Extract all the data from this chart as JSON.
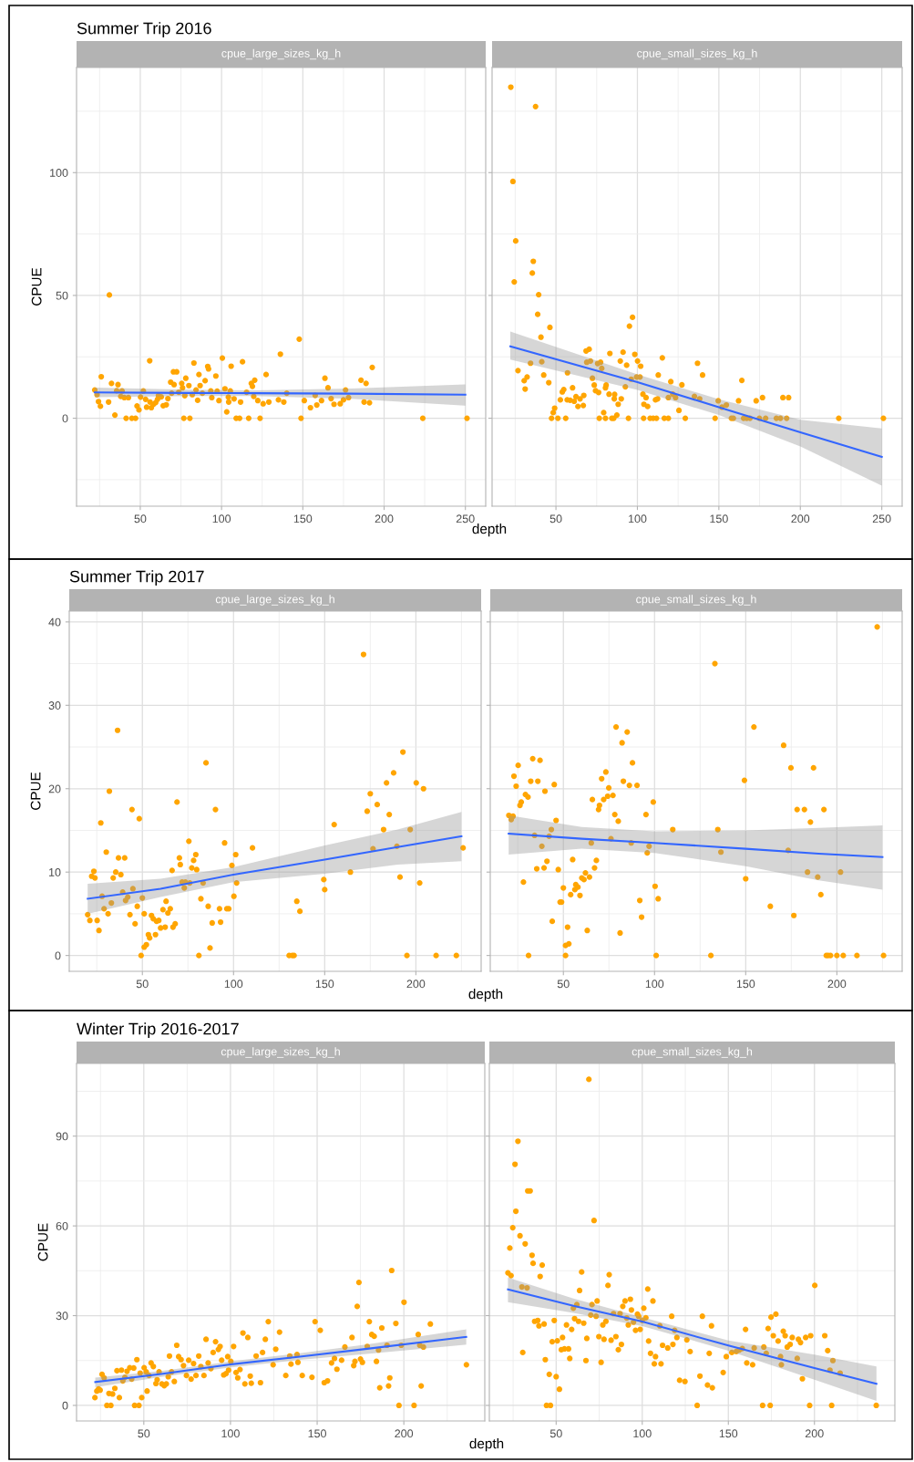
{
  "chart_data": [
    {
      "type": "scatter",
      "title": "Summer Trip 2016",
      "subtitle": "cpue_large_sizes_kg_h",
      "xlabel": "depth",
      "ylabel": "CPUE",
      "grid": true,
      "line_style": "solid",
      "xlim": [
        10.8,
        262.5
      ],
      "ylim": [
        -35.8,
        142.8
      ],
      "xticks": [
        {
          "value": 25,
          "label": null
        },
        50,
        {
          "value": 75,
          "label": null
        },
        100,
        {
          "value": 125,
          "label": null
        },
        150,
        {
          "value": 175,
          "label": null
        },
        200,
        {
          "value": 225,
          "label": null
        },
        250
      ],
      "yticks": [
        {
          "value": -25,
          "label": null
        },
        0,
        {
          "value": 25,
          "label": null
        },
        50,
        {
          "value": 75,
          "label": null
        },
        100,
        {
          "value": 125,
          "label": null
        }
      ],
      "series": [
        {
          "marker": "circle",
          "color": "#ffa500",
          "x": [
            22,
            23.4,
            24.3,
            25.5,
            26,
            30.5,
            31,
            32.3,
            34.4,
            36.3,
            35.5,
            38.8,
            38,
            40.2,
            41.3,
            42.7,
            44.8,
            47.1,
            48,
            49.2,
            50.2,
            51.9,
            53.3,
            53.9,
            55.8,
            56,
            56.8,
            58.1,
            59.5,
            60.6,
            61.2,
            62.9,
            64.1,
            66,
            67,
            68.7,
            69.3,
            70.8,
            70.4,
            72.4,
            73.7,
            75.5,
            76,
            76.8,
            77.4,
            78,
            79.9,
            80.5,
            82,
            83,
            84.3,
            85.3,
            86.1,
            86.8,
            88.2,
            89.9,
            91.5,
            92,
            93.4,
            94,
            96.5,
            97.3,
            98.4,
            100.5,
            102.1,
            103.2,
            104.2,
            104.4,
            105.4,
            105.9,
            107.7,
            109,
            111.1,
            111.7,
            112.9,
            115.4,
            116.7,
            118.3,
            119,
            120.4,
            119.8,
            122.3,
            123.7,
            125.6,
            127.4,
            129.1,
            135,
            136.2,
            138.3,
            140.1,
            147.8,
            148.9,
            150.9,
            154.7,
            157.6,
            158.6,
            161.5,
            163.6,
            165.5,
            167.4,
            169.2,
            173,
            175,
            176.3,
            178.1,
            185.8,
            187.7,
            188.9,
            191,
            192.7,
            223.8,
            251
          ],
          "values": [
            11.5,
            9.6,
            6.8,
            4.9,
            16.9,
            6.6,
            50.2,
            14.2,
            1.3,
            13.7,
            11.2,
            11.1,
            8.9,
            8.4,
            0,
            8.4,
            0,
            0,
            5,
            3.4,
            8.6,
            11.1,
            7.7,
            4.5,
            23.4,
            6.6,
            4.3,
            5.7,
            6.4,
            7.7,
            9.2,
            8.7,
            5.1,
            5.5,
            8,
            14.7,
            10.2,
            13.7,
            18.9,
            18.9,
            10.6,
            14.2,
            12.4,
            0,
            9.2,
            16.3,
            13.3,
            0,
            9.6,
            22.5,
            11.5,
            7.3,
            17.8,
            13.3,
            10.2,
            15.3,
            21.1,
            20.1,
            11.1,
            8.4,
            17.2,
            11,
            7.2,
            24.5,
            12,
            2.6,
            8.6,
            6.6,
            11.1,
            21.2,
            7.9,
            0,
            0,
            6.6,
            23,
            10.6,
            0,
            14.2,
            13,
            15.5,
            8.9,
            7.2,
            0,
            5.9,
            17.8,
            6.6,
            7.5,
            26.1,
            6.6,
            10.2,
            32.2,
            0,
            7.2,
            4.3,
            9.3,
            5.4,
            7.2,
            16.3,
            12.4,
            8,
            5.7,
            5.9,
            7.5,
            11.5,
            8.4,
            15.5,
            6.6,
            14.2,
            6.3,
            20.7,
            0,
            0
          ]
        },
        {
          "type": "line",
          "color": "#3366ff",
          "x": [
            22,
            80,
            120,
            180,
            250
          ],
          "values": [
            10.5,
            10.3,
            10.2,
            10.0,
            9.6
          ],
          "lower": [
            8.6,
            9.0,
            9.0,
            7.9,
            5.1
          ],
          "upper": [
            12.5,
            11.6,
            11.4,
            12.1,
            13.8
          ]
        }
      ]
    },
    {
      "type": "scatter",
      "subtitle": "cpue_small_sizes_kg_h",
      "grid": true,
      "line_style": "solid",
      "tick_labels": "x",
      "xlim": [
        10.8,
        262.5
      ],
      "ylim": [
        -35.8,
        142.8
      ],
      "xticks": [
        {
          "value": 25,
          "label": null
        },
        50,
        {
          "value": 75,
          "label": null
        },
        100,
        {
          "value": 125,
          "label": null
        },
        150,
        {
          "value": 175,
          "label": null
        },
        200,
        {
          "value": 225,
          "label": null
        },
        250
      ],
      "yticks": [
        {
          "value": -25,
          "label": null
        },
        0,
        {
          "value": 25,
          "label": null
        },
        50,
        {
          "value": 75,
          "label": null
        },
        100,
        {
          "value": 125,
          "label": null
        }
      ],
      "series": [
        {
          "marker": "circle",
          "color": "#ffa500",
          "x": [
            22.3,
            37.5,
            23.6,
            25.3,
            36.1,
            35.5,
            24.4,
            39.4,
            38.8,
            46.3,
            97,
            95.1,
            40.8,
            26.7,
            34.4,
            41.3,
            30.5,
            32.3,
            31.1,
            42.5,
            45.6,
            47.3,
            48.3,
            49.2,
            51.2,
            52.7,
            53.9,
            54.8,
            56,
            57.1,
            56.9,
            58.7,
            60.2,
            61.2,
            62.3,
            63.5,
            64.8,
            66.8,
            67.1,
            68.5,
            70.4,
            68.9,
            71.2,
            72.4,
            73.5,
            74.3,
            76.2,
            76.6,
            75.6,
            77.4,
            78.1,
            79.3,
            80.4,
            80.8,
            80.4,
            82.6,
            83.1,
            84.3,
            85.5,
            86,
            85.8,
            87.4,
            88.2,
            89.5,
            90.1,
            91.2,
            92.6,
            93.4,
            94.5,
            96.2,
            98.4,
            100.1,
            99.5,
            101.6,
            102,
            103.4,
            103.8,
            104,
            105.3,
            106.3,
            107.8,
            109.7,
            111.7,
            111.1,
            112.8,
            112.4,
            115.3,
            116.5,
            119,
            119,
            120.5,
            121.7,
            123.4,
            125.5,
            127.3,
            129.4,
            135,
            136.9,
            138.2,
            140,
            147.7,
            149.6,
            151.9,
            154.6,
            157.7,
            158.9,
            162.1,
            164.1,
            165.2,
            167.1,
            169.1,
            172.9,
            174.9,
            176.8,
            178.7,
            185.3,
            187.8,
            189.3,
            191.6,
            192.8,
            223.6,
            251
          ],
          "values": [
            134.8,
            126.9,
            96.4,
            72.2,
            63.9,
            59.1,
            55.5,
            50.3,
            42.3,
            37,
            41.1,
            37.5,
            33,
            19.4,
            22.4,
            23,
            15.3,
            16.8,
            11.9,
            17.6,
            14.5,
            0,
            2.3,
            4.1,
            0,
            7.5,
            10.7,
            11.7,
            0,
            18.5,
            7.5,
            7.3,
            12.4,
            6.9,
            8.8,
            4.8,
            7.9,
            5.2,
            9.3,
            27.4,
            28.1,
            22.8,
            23.3,
            16.3,
            13.5,
            11.2,
            10.5,
            0,
            22.3,
            22.8,
            20.3,
            2.3,
            0,
            13.5,
            12.4,
            9.8,
            26.4,
            0,
            0,
            9.7,
            7.9,
            1.3,
            5.7,
            23.3,
            7.9,
            26.9,
            12.8,
            21.6,
            0,
            15.9,
            26,
            23.3,
            16.8,
            16.8,
            21.2,
            9.8,
            0,
            5.7,
            8.4,
            4.8,
            0,
            0,
            0,
            7.5,
            17.6,
            7.9,
            24.6,
            0,
            0,
            8.4,
            14.9,
            9.8,
            8.4,
            3.2,
            13.6,
            0,
            8.9,
            22.4,
            7.9,
            17.6,
            0,
            7.1,
            4.5,
            5.4,
            0,
            0,
            7.1,
            15.4,
            0,
            0,
            0,
            7.1,
            0,
            8.4,
            0,
            0,
            0,
            8.4,
            0,
            8.4,
            0,
            0
          ]
        },
        {
          "type": "line",
          "color": "#3366ff",
          "x": [
            22,
            100,
            150,
            200,
            250
          ],
          "values": [
            29.3,
            14.7,
            4.5,
            -5.7,
            -15.7
          ],
          "lower": [
            23.9,
            11.5,
            1.3,
            -11.5,
            -27.4
          ],
          "upper": [
            35.3,
            17.9,
            7.7,
            -0.6,
            -4.1
          ]
        }
      ]
    },
    {
      "type": "scatter",
      "title": "Summer Trip 2017",
      "subtitle": "cpue_large_sizes_kg_h",
      "xlabel": "depth",
      "ylabel": "CPUE",
      "grid": true,
      "line_style": "solid",
      "xlim": [
        9.9,
        235.8
      ],
      "ylim": [
        -1.9,
        41.3
      ],
      "xticks": [
        {
          "value": 25,
          "label": null
        },
        50,
        {
          "value": 75,
          "label": null
        },
        100,
        {
          "value": 125,
          "label": null
        },
        150,
        {
          "value": 175,
          "label": null
        },
        200,
        {
          "value": 225,
          "label": null
        }
      ],
      "yticks": [
        0,
        {
          "value": 5,
          "label": null
        },
        10,
        {
          "value": 15,
          "label": null
        },
        20,
        {
          "value": 25,
          "label": null
        },
        30,
        {
          "value": 35,
          "label": null
        },
        40
      ],
      "series": [
        {
          "marker": "circle",
          "color": "#ffa500",
          "x": [
            20,
            21.2,
            22.2,
            23.4,
            24,
            25.2,
            26.2,
            27.2,
            27.9,
            29,
            30.2,
            31.2,
            31.9,
            33,
            34,
            35.4,
            36.4,
            36.9,
            38.2,
            39.2,
            40.3,
            40.8,
            42,
            43.2,
            44.3,
            44.8,
            46,
            47.2,
            48.3,
            49.3,
            50,
            51,
            51,
            52.2,
            53.3,
            54,
            55,
            56,
            57.2,
            57.8,
            59,
            60,
            61.3,
            62.5,
            63,
            64,
            65.3,
            66.3,
            66.8,
            68,
            69,
            70.3,
            70.8,
            71.8,
            73,
            73.6,
            75.5,
            76,
            77.1,
            78.1,
            79.3,
            79.8,
            81,
            82.1,
            83.3,
            84.9,
            86.1,
            87.1,
            88.3,
            90.1,
            92.3,
            92.9,
            95.1,
            96.3,
            97.4,
            99.1,
            100.2,
            101.2,
            101.7,
            110.4,
            130.5,
            132.2,
            133.2,
            134.7,
            136.4,
            149.5,
            150,
            155.2,
            164.1,
            171.3,
            173.3,
            175,
            176.5,
            178.8,
            182.3,
            183.9,
            185.4,
            187.8,
            189.6,
            191.3,
            192.9,
            195.1,
            196.9,
            200.2,
            202.1,
            204.2,
            211.1,
            222.2,
            225.9
          ],
          "values": [
            4.9,
            4.2,
            9.5,
            10.1,
            9.3,
            4.2,
            3,
            15.9,
            7.1,
            5.6,
            12.4,
            5,
            19.7,
            6.3,
            9.3,
            10,
            27,
            11.7,
            9.7,
            7.6,
            11.7,
            6.6,
            7,
            4.9,
            17.5,
            8,
            3.8,
            5.9,
            16.4,
            0,
            6.9,
            1,
            5,
            1.3,
            2.5,
            2.1,
            4.8,
            4.4,
            2.5,
            4.1,
            4.2,
            3.3,
            5.5,
            3.4,
            6.5,
            5.1,
            5.6,
            10.2,
            3.4,
            3.8,
            18.4,
            11.7,
            10.9,
            8.8,
            8.1,
            8.8,
            13.7,
            8.7,
            10.5,
            11.4,
            12.1,
            10.3,
            0,
            6.8,
            8.7,
            23.1,
            5.9,
            0.9,
            3.9,
            17.5,
            5.6,
            4,
            13.5,
            5.6,
            5.6,
            10.8,
            7.1,
            12.1,
            8.7,
            12.9,
            0,
            0,
            0,
            6.5,
            5.3,
            9.1,
            7.9,
            15.7,
            10,
            36.1,
            17.3,
            19.4,
            12.8,
            18.1,
            15.1,
            20.7,
            16.9,
            21.9,
            13.1,
            9.4,
            24.4,
            0,
            15.1,
            20.7,
            8.7,
            20,
            0,
            0,
            12.9
          ]
        },
        {
          "type": "line",
          "color": "#3366ff",
          "x": [
            20,
            60,
            100,
            150,
            190,
            225
          ],
          "values": [
            6.8,
            8.0,
            9.7,
            11.5,
            13.0,
            14.3
          ],
          "lower": [
            5.0,
            7.0,
            8.8,
            9.8,
            10.9,
            11.3
          ],
          "upper": [
            8.6,
            9.2,
            10.6,
            13.2,
            15.1,
            17.2
          ]
        }
      ]
    },
    {
      "type": "scatter",
      "subtitle": "cpue_small_sizes_kg_h",
      "grid": true,
      "line_style": "solid",
      "tick_labels": "x",
      "xlim": [
        9.9,
        235.8
      ],
      "ylim": [
        -1.9,
        41.3
      ],
      "xticks": [
        {
          "value": 25,
          "label": null
        },
        50,
        {
          "value": 75,
          "label": null
        },
        100,
        {
          "value": 125,
          "label": null
        },
        150,
        {
          "value": 175,
          "label": null
        },
        200,
        {
          "value": 225,
          "label": null
        }
      ],
      "yticks": [
        0,
        {
          "value": 5,
          "label": null
        },
        10,
        {
          "value": 15,
          "label": null
        },
        20,
        {
          "value": 25,
          "label": null
        },
        30,
        {
          "value": 35,
          "label": null
        },
        40
      ],
      "series": [
        {
          "marker": "circle",
          "color": "#ffa500",
          "x": [
            20.1,
            21.4,
            22.4,
            22.9,
            24.1,
            25.2,
            26.2,
            26.9,
            28.1,
            29.2,
            30.6,
            30.9,
            32.1,
            33.2,
            34.2,
            35.4,
            36,
            37.2,
            38.2,
            39.4,
            39.9,
            41,
            42.2,
            43.4,
            43.9,
            45,
            46,
            47.2,
            48.2,
            49,
            50,
            51.2,
            51.2,
            52.3,
            53,
            54,
            55.1,
            56.3,
            56.8,
            58,
            59.1,
            60.1,
            61.3,
            62.1,
            63.1,
            64.3,
            65.3,
            65.9,
            67.1,
            68.1,
            69.3,
            69.8,
            71,
            72.1,
            73.3,
            74.3,
            74.9,
            76.1,
            77.2,
            78.2,
            78.9,
            80.1,
            81.1,
            82.2,
            82.9,
            85,
            86.2,
            87.2,
            87.9,
            90.4,
            91.9,
            92.9,
            95.3,
            96,
            97,
            99.3,
            100.3,
            100.9,
            102,
            110,
            130.9,
            133.1,
            134.7,
            136.4,
            149.3,
            150,
            154.5,
            163.5,
            170.8,
            173.3,
            174.8,
            176.4,
            178.2,
            182.2,
            183.9,
            185.5,
            187.2,
            189.5,
            191.2,
            192.9,
            194.2,
            195.2,
            196.5,
            200,
            202,
            203.5,
            211,
            222.1,
            225.6
          ],
          "values": [
            16.8,
            16.3,
            16.7,
            21.5,
            20.3,
            22.8,
            18,
            18.4,
            8.8,
            19.3,
            19,
            0,
            20.9,
            23.6,
            14.4,
            10.4,
            20.9,
            23.4,
            13.1,
            10.5,
            19.7,
            11.3,
            14.3,
            15.1,
            4.1,
            20.5,
            16.2,
            10.3,
            6.4,
            6.4,
            8.1,
            0,
            1.2,
            3.4,
            1.4,
            7.3,
            11.5,
            7.9,
            8.5,
            8.2,
            7.2,
            9.3,
            9.1,
            9.9,
            3,
            9.4,
            13.5,
            18.7,
            10.5,
            11.4,
            17.5,
            18,
            21.2,
            18.7,
            22,
            19.1,
            20.1,
            14,
            19.2,
            16.9,
            27.4,
            16.1,
            2.7,
            25.5,
            20.9,
            26.8,
            20.4,
            13.5,
            23.1,
            20.4,
            6.6,
            4.6,
            16.9,
            12.3,
            13.1,
            18.4,
            8.3,
            0,
            6.8,
            15.1,
            0,
            35,
            15.1,
            12.4,
            21,
            9.2,
            27.4,
            5.9,
            25.2,
            12.6,
            22.5,
            4.8,
            17.5,
            17.5,
            10,
            16,
            22.5,
            9.4,
            7.3,
            17.5,
            0,
            0,
            0,
            0,
            10,
            0,
            0,
            39.4,
            0
          ]
        },
        {
          "type": "line",
          "color": "#3366ff",
          "x": [
            20,
            60,
            100,
            150,
            190,
            225
          ],
          "values": [
            14.6,
            14.0,
            13.5,
            12.8,
            12.2,
            11.8
          ],
          "lower": [
            12.1,
            12.8,
            12.3,
            10.7,
            9.0,
            7.9
          ],
          "upper": [
            16.8,
            15.4,
            14.9,
            15.0,
            15.3,
            15.6
          ]
        }
      ]
    },
    {
      "type": "scatter",
      "title": "Winter Trip 2016-2017",
      "subtitle": "cpue_large_sizes_kg_h",
      "xlabel": "depth",
      "ylabel": "CPUE",
      "grid": true,
      "line_style": "solid",
      "xlim": [
        11.2,
        246.7
      ],
      "ylim": [
        -5.2,
        114.3
      ],
      "xticks": [
        {
          "value": 25,
          "label": null
        },
        50,
        {
          "value": 75,
          "label": null
        },
        100,
        {
          "value": 125,
          "label": null
        },
        150,
        {
          "value": 175,
          "label": null
        },
        200,
        {
          "value": 225,
          "label": null
        }
      ],
      "yticks": [
        0,
        {
          "value": 15,
          "label": null
        },
        30,
        {
          "value": 45,
          "label": null
        },
        60,
        {
          "value": 75,
          "label": null
        },
        90,
        {
          "value": 105,
          "label": null
        }
      ],
      "series": [
        {
          "marker": "circle",
          "color": "#ffa500",
          "x": [
            21.8,
            22.9,
            23.9,
            24.8,
            25.9,
            27.1,
            28.7,
            29.9,
            31,
            32,
            33.3,
            34.5,
            35.9,
            37.1,
            37.9,
            39.1,
            40.3,
            41.9,
            43,
            44.2,
            44.7,
            46,
            47.2,
            47.9,
            48.8,
            50.2,
            51.4,
            51.9,
            53,
            54.2,
            55.5,
            57,
            57.7,
            58.8,
            60.4,
            61.8,
            63,
            64.1,
            64.8,
            66,
            67.6,
            69,
            70.1,
            71.5,
            72.9,
            74.6,
            75.9,
            77.3,
            78.7,
            80.1,
            81.7,
            82.9,
            84.7,
            85.9,
            87.1,
            88.7,
            90,
            91.4,
            93,
            94,
            94.9,
            96.1,
            97.4,
            98.4,
            98.9,
            100.2,
            101.8,
            103.2,
            104.2,
            105.5,
            107.2,
            108.3,
            110,
            111.4,
            112,
            114.8,
            117.3,
            118.5,
            120.1,
            121.8,
            124.6,
            126.1,
            128.3,
            131.9,
            134.2,
            134.9,
            138.4,
            138.9,
            141.4,
            147,
            148.8,
            151.8,
            154.1,
            156,
            158.3,
            160,
            161.4,
            164.1,
            166,
            170.1,
            171.1,
            171.8,
            173.1,
            174.1,
            175,
            176.1,
            178.9,
            180.1,
            181.5,
            182.9,
            184.2,
            185.4,
            186.1,
            187.3,
            190.3,
            191.2,
            191.9,
            193,
            195.4,
            197.2,
            198.5,
            200.1,
            205.9,
            208.3,
            209.2,
            210,
            211.3,
            215.3,
            236.1
          ],
          "values": [
            2.6,
            4.8,
            5.5,
            5.1,
            10.4,
            9.2,
            0,
            4,
            0,
            3.8,
            5.7,
            11.6,
            2.6,
            11.8,
            8.2,
            9.4,
            11.4,
            12.6,
            8.8,
            12.5,
            0,
            15.3,
            0,
            10.8,
            2.6,
            12.6,
            11.2,
            4.8,
            10,
            14.2,
            13,
            7.3,
            8.6,
            11.2,
            7.2,
            6.6,
            7.2,
            9.6,
            16.5,
            11.2,
            8,
            20.1,
            16.3,
            15.3,
            13.3,
            10,
            15.1,
            8.8,
            14,
            10,
            16.5,
            13,
            10,
            22.1,
            14.2,
            12.3,
            17.7,
            21.3,
            18.7,
            19.7,
            15.1,
            10.2,
            10.6,
            16.3,
            11.8,
            14.7,
            19.7,
            11,
            9.2,
            12,
            24.2,
            7.2,
            22.7,
            9.8,
            7.4,
            16.5,
            7.6,
            17.7,
            22.1,
            28,
            13.6,
            18.8,
            24.5,
            10,
            16.5,
            13.8,
            17,
            14.4,
            10,
            9.4,
            28,
            25.1,
            7.6,
            8.2,
            14.2,
            15.7,
            12.1,
            15.1,
            19.5,
            22.7,
            13.3,
            14.7,
            33.1,
            41.1,
            15.5,
            14.4,
            19.7,
            28,
            23.7,
            23.1,
            14.7,
            18.5,
            5.9,
            25.9,
            20.1,
            6.5,
            9.2,
            45.1,
            27.4,
            0,
            20.1,
            34.5,
            0,
            23.7,
            20.1,
            6.5,
            19.5,
            27.2,
            13.6
          ]
        },
        {
          "type": "line",
          "color": "#3366ff",
          "x": [
            22,
            60,
            100,
            140,
            180,
            236
          ],
          "values": [
            7.8,
            10.5,
            13.7,
            16.3,
            19.0,
            22.9
          ],
          "lower": [
            6.1,
            9.5,
            12.7,
            15.2,
            17.3,
            20.3
          ],
          "upper": [
            9.3,
            11.5,
            14.7,
            17.4,
            20.5,
            25.4
          ]
        }
      ]
    },
    {
      "type": "scatter",
      "subtitle": "cpue_small_sizes_kg_h",
      "grid": true,
      "line_style": "solid",
      "tick_labels": "x",
      "xlim": [
        11.2,
        246.7
      ],
      "ylim": [
        -5.2,
        114.3
      ],
      "xticks": [
        {
          "value": 25,
          "label": null
        },
        50,
        {
          "value": 75,
          "label": null
        },
        100,
        {
          "value": 125,
          "label": null
        },
        150,
        {
          "value": 175,
          "label": null
        },
        200,
        {
          "value": 225,
          "label": null
        }
      ],
      "yticks": [
        0,
        {
          "value": 15,
          "label": null
        },
        30,
        {
          "value": 45,
          "label": null
        },
        60,
        {
          "value": 75,
          "label": null
        },
        90,
        {
          "value": 105,
          "label": null
        }
      ],
      "series": [
        {
          "marker": "circle",
          "color": "#ffa500",
          "x": [
            22,
            23.1,
            23.8,
            24.8,
            26.1,
            26.6,
            27.8,
            29,
            30.1,
            30.6,
            32,
            33.1,
            33.5,
            34.9,
            36,
            36.6,
            37.5,
            39.3,
            40,
            40.7,
            41.9,
            43,
            43.7,
            44.4,
            46,
            46.7,
            47.7,
            48.9,
            50,
            50.7,
            51.9,
            53,
            53.7,
            54.8,
            56,
            57.2,
            57.9,
            59,
            60,
            60.7,
            62,
            63,
            63.6,
            64.8,
            66,
            67.3,
            67.8,
            69,
            70.1,
            70.8,
            72,
            73.2,
            73.8,
            74.8,
            76.1,
            77.1,
            77.8,
            78.9,
            80.1,
            80.8,
            81.9,
            83.3,
            84.7,
            86.1,
            87.1,
            87.9,
            88.7,
            90,
            91,
            91.9,
            93.1,
            93.7,
            94.9,
            96.1,
            97.2,
            97.9,
            98.8,
            100,
            100.9,
            102.1,
            103.2,
            103.7,
            104.8,
            106.2,
            107,
            107.7,
            110.2,
            110.9,
            111.8,
            114.8,
            117.1,
            117.8,
            118.8,
            120.1,
            121.7,
            124.8,
            125.9,
            127.8,
            131.9,
            133.5,
            134.9,
            137.9,
            138.9,
            140.2,
            140.7,
            147,
            148.8,
            152,
            154.6,
            156.3,
            158.1,
            160,
            160.7,
            164.1,
            165,
            170.6,
            169.9,
            172,
            173.1,
            174.3,
            174.8,
            176.1,
            177.6,
            178.9,
            180.3,
            180.8,
            181.9,
            183,
            184.2,
            185.9,
            187.1,
            190,
            190.7,
            191.9,
            193,
            194.9,
            197.2,
            197.8,
            200.2,
            206,
            207.7,
            209,
            210,
            210.7,
            214.9,
            235.9
          ],
          "values": [
            44.3,
            52.6,
            43.4,
            59.4,
            80.6,
            64.9,
            88.3,
            56.7,
            39.6,
            17.7,
            54,
            39.3,
            71.7,
            71.7,
            50.2,
            47.5,
            28.1,
            28.4,
            26.6,
            43.1,
            46.9,
            27.2,
            15.3,
            0,
            10.4,
            0,
            21.3,
            28.4,
            9.6,
            21.6,
            5.4,
            18.6,
            22.7,
            18.9,
            26.9,
            18.9,
            15.7,
            25.4,
            32.5,
            29,
            33.7,
            28.1,
            38.4,
            44.6,
            27.5,
            15,
            22.4,
            109,
            30.2,
            33.7,
            61.8,
            29.8,
            34.9,
            23,
            14.4,
            26.9,
            22.1,
            28.1,
            40.1,
            43.7,
            21.8,
            30.7,
            23,
            18.6,
            30.7,
            20.4,
            33.1,
            34.9,
            29.2,
            26.9,
            35.5,
            31.9,
            27.8,
            25.1,
            30.5,
            29.8,
            25.4,
            28.4,
            32.5,
            29.3,
            38.9,
            21.5,
            17.4,
            34.9,
            13.9,
            16.3,
            26.6,
            13.9,
            20.1,
            19.2,
            29.8,
            20.4,
            25.1,
            22.7,
            8.4,
            8,
            21.9,
            18,
            0,
            9.8,
            29.8,
            6.8,
            17.4,
            26.6,
            5.9,
            11,
            16.3,
            17.7,
            18,
            18.5,
            19,
            25.4,
            14.2,
            13.6,
            19.2,
            19.5,
            0,
            17.4,
            25.7,
            0,
            29.5,
            23.3,
            30.5,
            21.5,
            16.3,
            13.6,
            24.8,
            23.3,
            19.5,
            20.4,
            22.7,
            15.7,
            22.1,
            21,
            8.9,
            22.7,
            0,
            23.3,
            40.1,
            23.3,
            18.3,
            11.8,
            0,
            15,
            10.8,
            0
          ]
        },
        {
          "type": "line",
          "color": "#3366ff",
          "x": [
            22,
            60,
            100,
            150,
            200,
            236
          ],
          "values": [
            38.8,
            33.3,
            28.0,
            20.0,
            12.5,
            7.2
          ],
          "lower": [
            34.5,
            30.9,
            26.5,
            18.3,
            8.6,
            1.5
          ],
          "upper": [
            42.7,
            35.7,
            29.5,
            21.7,
            17.0,
            13.0
          ]
        }
      ]
    }
  ]
}
